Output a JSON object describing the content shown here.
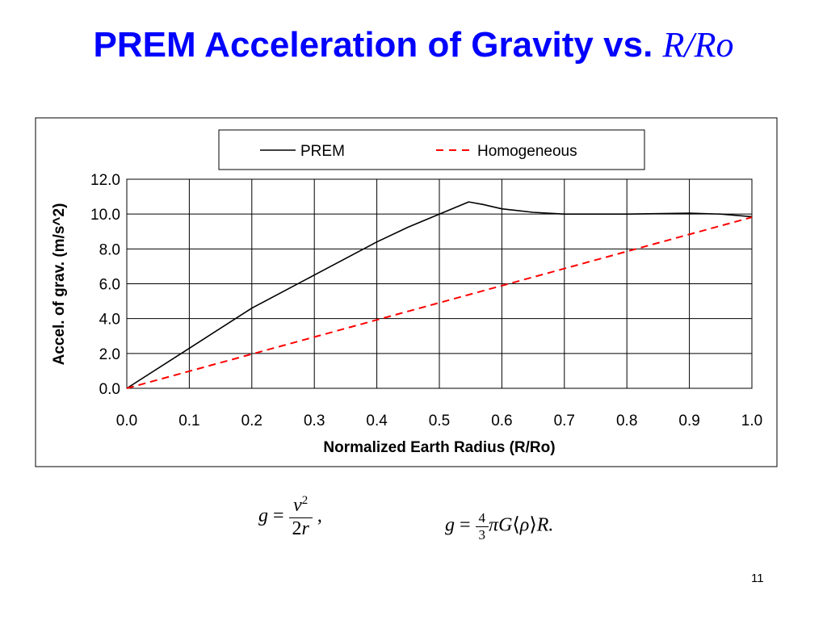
{
  "slide": {
    "title_main": "PREM Acceleration of Gravity vs.",
    "title_var": "R/Ro",
    "page_number": "11"
  },
  "equations": {
    "eq1": {
      "lhs": "g",
      "eq": "=",
      "num_v": "v",
      "num_exp": "2",
      "den": "2",
      "den_var": "r",
      "tail": ","
    },
    "eq2": {
      "lhs": "g",
      "eq": "=",
      "frac_num": "4",
      "frac_den": "3",
      "pi": "π",
      "G": "G",
      "lang": "⟨",
      "rho": "ρ",
      "rang": "⟩",
      "R": "R."
    }
  },
  "chart_data": {
    "type": "line",
    "xlabel": "Normalized Earth Radius (R/Ro)",
    "ylabel": "Accel. of grav. (m/s^2)",
    "xlim": [
      0,
      1
    ],
    "ylim": [
      0,
      12
    ],
    "xticks": [
      "0.0",
      "0.1",
      "0.2",
      "0.3",
      "0.4",
      "0.5",
      "0.6",
      "0.7",
      "0.8",
      "0.9",
      "1.0"
    ],
    "yticks": [
      "0.0",
      "2.0",
      "4.0",
      "6.0",
      "8.0",
      "10.0",
      "12.0"
    ],
    "grid": true,
    "legend_position": "top",
    "series": [
      {
        "name": "PREM",
        "color": "#000000",
        "style": "solid",
        "x": [
          0,
          0.1,
          0.2,
          0.3,
          0.4,
          0.45,
          0.5,
          0.547,
          0.57,
          0.6,
          0.65,
          0.7,
          0.8,
          0.9,
          0.95,
          1.0
        ],
        "y": [
          0,
          2.3,
          4.6,
          6.5,
          8.4,
          9.25,
          10.0,
          10.7,
          10.55,
          10.3,
          10.1,
          10.0,
          10.0,
          10.05,
          10.0,
          9.85
        ]
      },
      {
        "name": "Homogeneous",
        "color": "#ff0000",
        "style": "dashed",
        "x": [
          0,
          1.0
        ],
        "y": [
          0,
          9.82
        ]
      }
    ]
  }
}
